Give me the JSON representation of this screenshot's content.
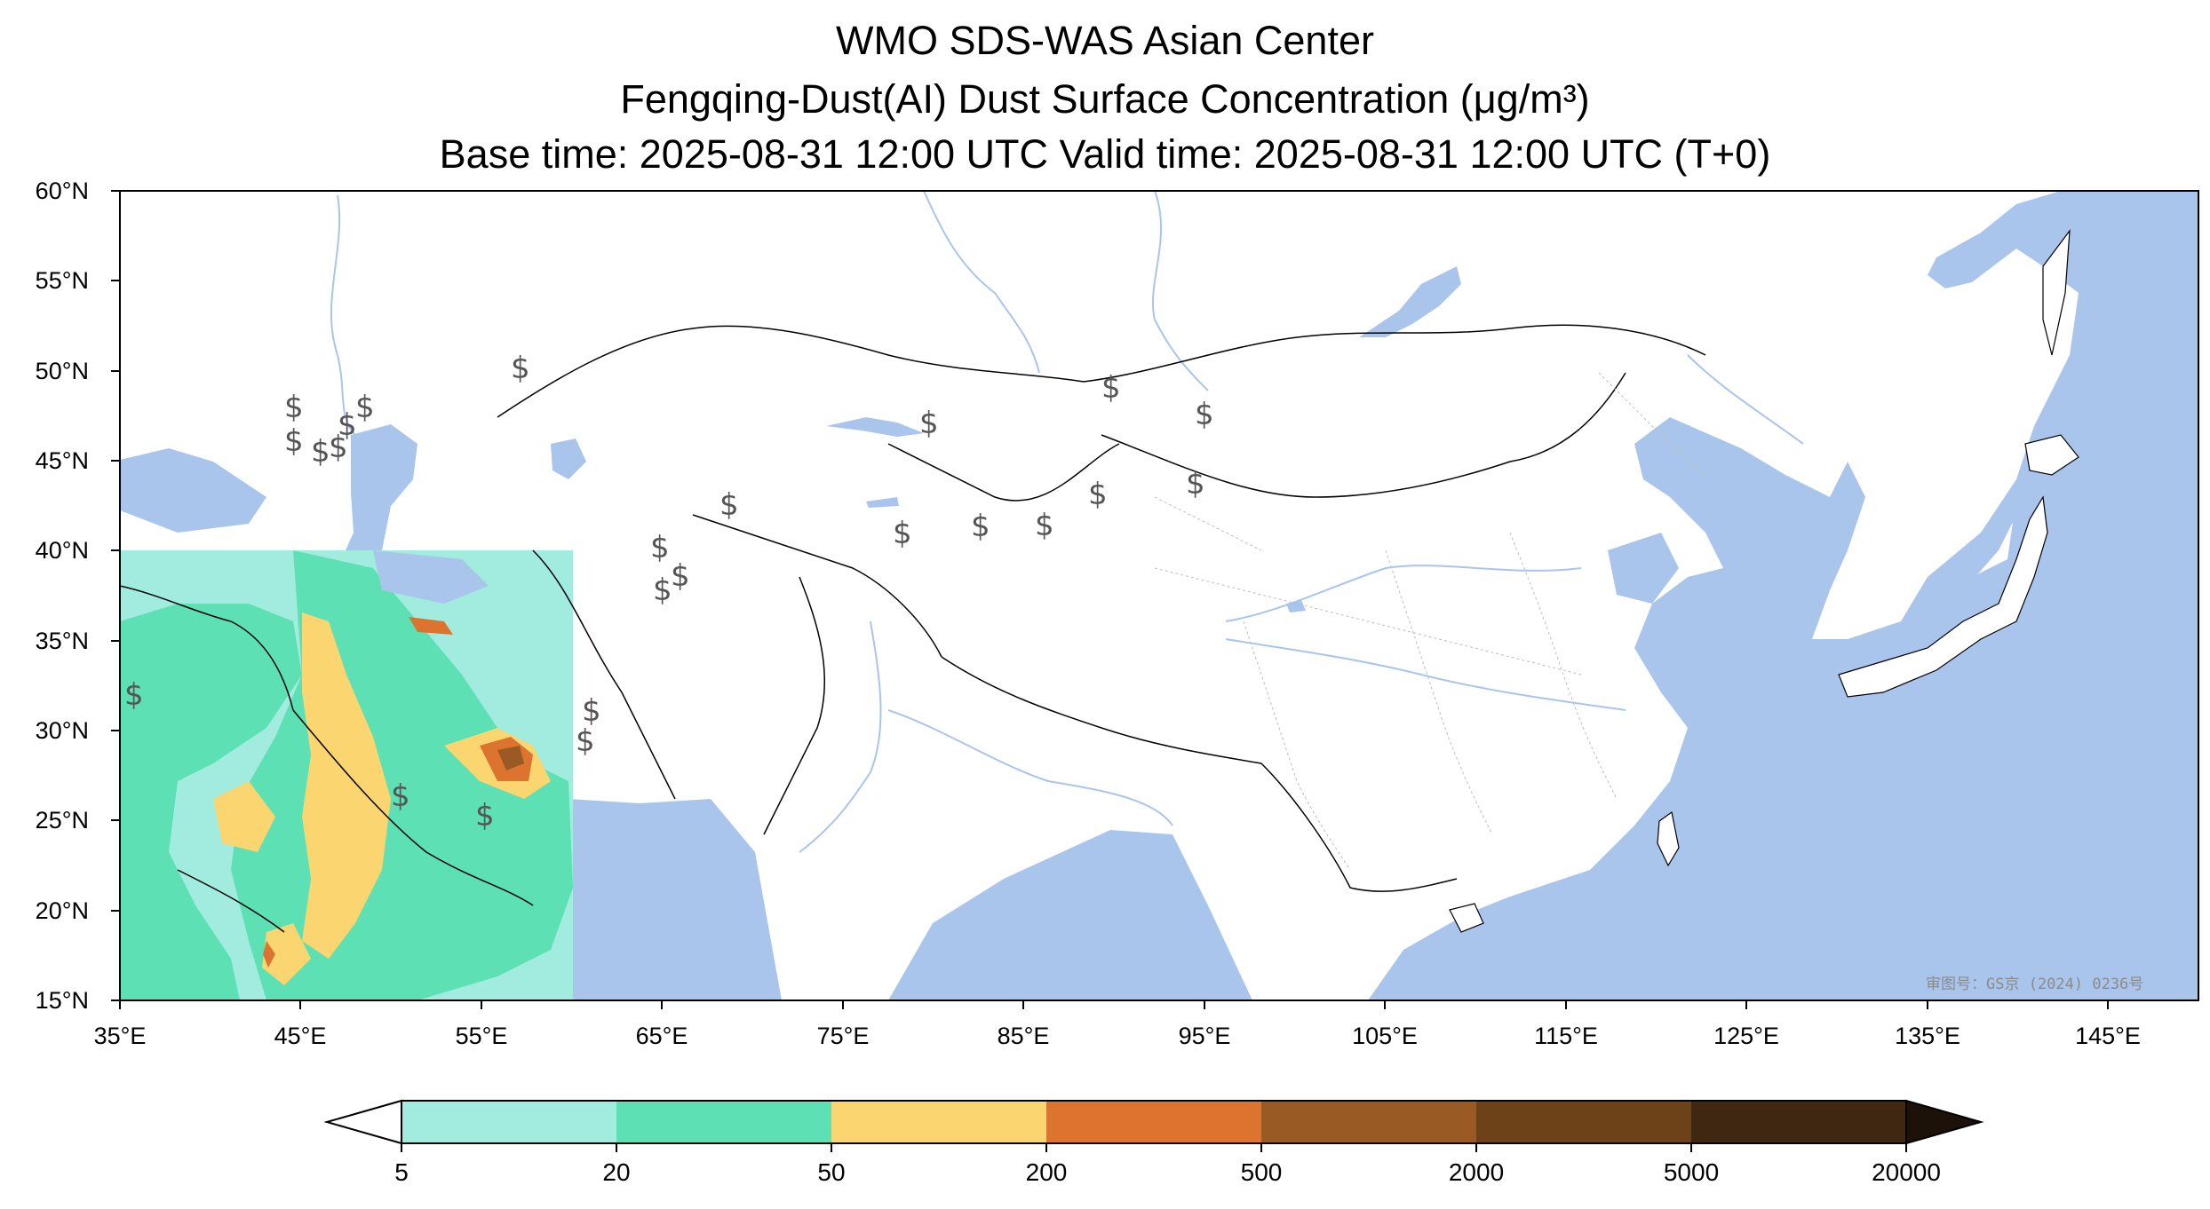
{
  "header": {
    "line1": "WMO SDS-WAS Asian Center",
    "line2": "Fengqing-Dust(AI) Dust Surface Concentration (μg/m³)",
    "line3": "Base time: 2025-08-31 12:00 UTC Valid time: 2025-08-31 12:00 UTC (T+0)"
  },
  "map": {
    "extent": {
      "lon": [
        35,
        150
      ],
      "lat": [
        15,
        60
      ]
    },
    "colors": {
      "ocean": "#a9c5ec",
      "land": "#ffffff",
      "rivers": "#a9c5ec",
      "borders": "#000000"
    },
    "lat_labels": [
      "60°N",
      "55°N",
      "50°N",
      "45°N",
      "40°N",
      "35°N",
      "30°N",
      "25°N",
      "20°N",
      "15°N"
    ],
    "lon_labels": [
      "35°E",
      "45°E",
      "55°E",
      "65°E",
      "75°E",
      "85°E",
      "95°E",
      "105°E",
      "115°E",
      "125°E",
      "135°E",
      "145°E"
    ],
    "approval_text": "审图号：GS京 (2024) 0236号"
  },
  "colorbar": {
    "labels": [
      "5",
      "20",
      "50",
      "200",
      "500",
      "2000",
      "5000",
      "20000"
    ],
    "colors": [
      "#a2ebdf",
      "#5ee0b5",
      "#fbd56f",
      "#dc7430",
      "#9a5a24",
      "#6e4219",
      "#3f2712",
      "#1d120a"
    ],
    "under_color": "#ffffff"
  },
  "dust_field": {
    "domain": {
      "lon": [
        35,
        60
      ],
      "lat": [
        15,
        40
      ]
    },
    "levels_present": [
      "5",
      "20",
      "50",
      "200",
      "500"
    ]
  }
}
